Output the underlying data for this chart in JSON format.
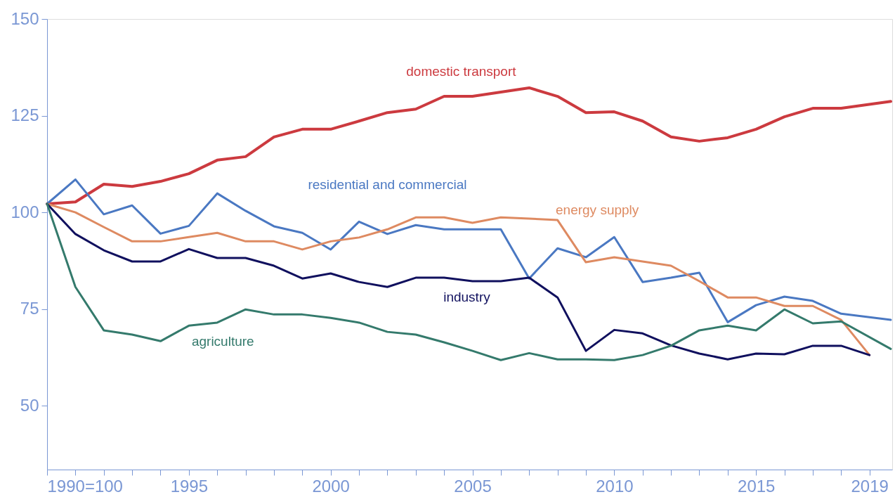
{
  "chart_data": {
    "type": "line",
    "x": [
      1990,
      1991,
      1992,
      1993,
      1994,
      1995,
      1996,
      1997,
      1998,
      1999,
      2000,
      2001,
      2002,
      2003,
      2004,
      2005,
      2006,
      2007,
      2008,
      2009,
      2010,
      2011,
      2012,
      2013,
      2014,
      2015,
      2016,
      2017,
      2018,
      2019
    ],
    "xlim": [
      1990,
      2019.8
    ],
    "xticks": [
      {
        "value": 1990,
        "label": "1990=100"
      },
      {
        "value": 1991,
        "label": null
      },
      {
        "value": 1992,
        "label": null
      },
      {
        "value": 1993,
        "label": null
      },
      {
        "value": 1994,
        "label": null
      },
      1995,
      {
        "value": 1996,
        "label": null
      },
      {
        "value": 1997,
        "label": null
      },
      {
        "value": 1998,
        "label": null
      },
      {
        "value": 1999,
        "label": null
      },
      2000,
      {
        "value": 2001,
        "label": null
      },
      {
        "value": 2002,
        "label": null
      },
      {
        "value": 2003,
        "label": null
      },
      {
        "value": 2004,
        "label": null
      },
      2005,
      {
        "value": 2006,
        "label": null
      },
      {
        "value": 2007,
        "label": null
      },
      {
        "value": 2008,
        "label": null
      },
      {
        "value": 2009,
        "label": null
      },
      2010,
      {
        "value": 2011,
        "label": null
      },
      {
        "value": 2012,
        "label": null
      },
      {
        "value": 2013,
        "label": null
      },
      {
        "value": 2014,
        "label": null
      },
      2015,
      {
        "value": 2016,
        "label": null
      },
      {
        "value": 2017,
        "label": null
      },
      {
        "value": 2018,
        "label": null
      },
      2019
    ],
    "ylim": [
      33.5,
      150
    ],
    "yticks": [
      50,
      75,
      100,
      125,
      150
    ],
    "series": [
      {
        "name": "domestic transport",
        "color": "#cc3a3f",
        "x": [
          1990,
          1991,
          1992,
          1993,
          1994,
          1995,
          1996,
          1997,
          1998,
          1999,
          2000,
          2001,
          2002,
          2003,
          2004,
          2005,
          2006,
          2007,
          2008,
          2009,
          2010,
          2011,
          2012,
          2013,
          2014,
          2015,
          2016,
          2017,
          2018,
          2019.75
        ],
        "values": [
          102.2,
          102.7,
          107.3,
          106.7,
          108,
          110,
          113.5,
          114.4,
          119.5,
          121.5,
          121.5,
          123.6,
          125.8,
          126.7,
          130,
          130,
          131.1,
          132.2,
          130,
          125.8,
          126,
          123.6,
          119.5,
          118.4,
          119.3,
          121.5,
          124.7,
          126.9,
          126.9,
          128.7
        ]
      },
      {
        "name": "residential and commercial",
        "color": "#4a78c2",
        "x": [
          1990,
          1991,
          1992,
          1993,
          1994,
          1995,
          1996,
          1997,
          1998,
          1999,
          2000,
          2001,
          2002,
          2003,
          2004,
          2005,
          2006,
          2007,
          2008,
          2009,
          2010,
          2011,
          2012,
          2013,
          2014,
          2015,
          2016,
          2017,
          2018,
          2019.75
        ],
        "values": [
          102.2,
          108.5,
          99.5,
          101.8,
          94.5,
          96.5,
          104.9,
          100.4,
          96.4,
          94.7,
          90.4,
          97.6,
          94.4,
          96.7,
          95.6,
          95.6,
          95.6,
          82.9,
          90.7,
          88.4,
          93.6,
          82,
          83.1,
          84.4,
          71.6,
          76,
          78.2,
          77.1,
          73.8,
          72.2
        ]
      },
      {
        "name": "energy supply",
        "color": "#de8a61",
        "values": [
          102.2,
          100,
          96.2,
          92.5,
          92.5,
          93.6,
          94.7,
          92.5,
          92.5,
          90.4,
          92.5,
          93.5,
          95.6,
          98.7,
          98.7,
          97.3,
          98.7,
          98.4,
          98,
          87.1,
          88.4,
          87.3,
          86.2,
          82.2,
          78,
          78,
          75.8,
          75.8,
          72.2,
          63.1
        ]
      },
      {
        "name": "industry",
        "color": "#10105e",
        "values": [
          102.2,
          94.4,
          90.2,
          87.3,
          87.3,
          90.5,
          88.2,
          88.2,
          86.2,
          82.9,
          84.2,
          82,
          80.7,
          83.1,
          83.1,
          82.2,
          82.2,
          83.1,
          78,
          64.2,
          69.6,
          68.7,
          65.6,
          63.5,
          62,
          63.5,
          63.3,
          65.5,
          65.5,
          63.1
        ]
      },
      {
        "name": "agriculture",
        "color": "#347a6c",
        "x": [
          1990,
          1991,
          1992,
          1993,
          1994,
          1995,
          1996,
          1997,
          1998,
          1999,
          2000,
          2001,
          2002,
          2003,
          2004,
          2005,
          2006,
          2007,
          2008,
          2009,
          2010,
          2011,
          2012,
          2013,
          2014,
          2015,
          2016,
          2017,
          2018,
          2019.75
        ],
        "values": [
          102.2,
          80.7,
          69.5,
          68.4,
          66.7,
          70.7,
          71.5,
          74.9,
          73.6,
          73.6,
          72.7,
          71.5,
          69.1,
          68.4,
          66.4,
          64.2,
          61.8,
          63.6,
          62,
          62,
          61.8,
          63.1,
          65.5,
          69.5,
          70.7,
          69.5,
          74.9,
          71.3,
          71.8,
          64.7
        ]
      }
    ]
  }
}
